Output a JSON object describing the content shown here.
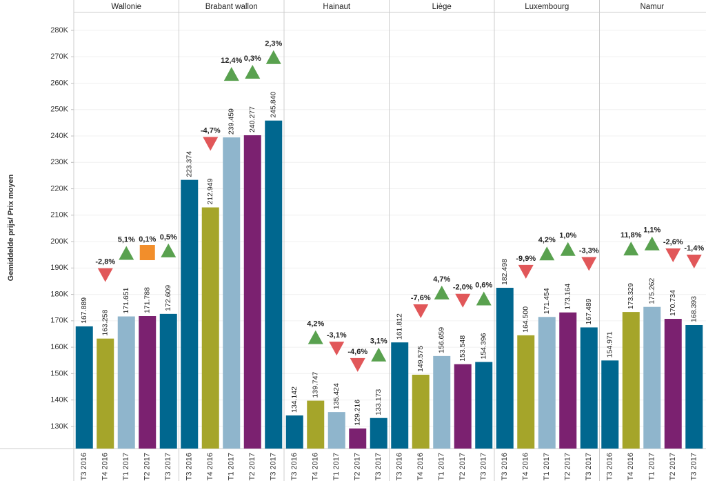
{
  "chart_data": {
    "type": "bar",
    "y_label": "Gemiddelde prijs/ Prix moyen",
    "categories": [
      "Wallonie",
      "Brabant wallon",
      "Hainaut",
      "Liège",
      "Luxembourg",
      "Namur"
    ],
    "series": [
      {
        "name": "T3 2016",
        "color": "#00678f",
        "values": [
          167889,
          223374,
          134142,
          161812,
          182498,
          154971
        ],
        "value_labels": [
          "167.889",
          "223.374",
          "134.142",
          "161.812",
          "182.498",
          "154.971"
        ]
      },
      {
        "name": "T4 2016",
        "color": "#a5a52a",
        "values": [
          163258,
          212949,
          139747,
          149575,
          164500,
          173329
        ],
        "value_labels": [
          "163.258",
          "212.949",
          "139.747",
          "149.575",
          "164.500",
          "173.329"
        ],
        "changes": [
          -2.8,
          -4.7,
          4.2,
          -7.6,
          -9.9,
          11.8
        ],
        "change_labels": [
          "-2,8%",
          "-4,7%",
          "4,2%",
          "-7,6%",
          "-9,9%",
          "11,8%"
        ]
      },
      {
        "name": "T1 2017",
        "color": "#8fb5cc",
        "values": [
          171651,
          239459,
          135424,
          156659,
          171454,
          175262
        ],
        "value_labels": [
          "171.651",
          "239.459",
          "135.424",
          "156.659",
          "171.454",
          "175.262"
        ],
        "changes": [
          5.1,
          12.4,
          -3.1,
          4.7,
          4.2,
          1.1
        ],
        "change_labels": [
          "5,1%",
          "12,4%",
          "-3,1%",
          "4,7%",
          "4,2%",
          "1,1%"
        ]
      },
      {
        "name": "T2 2017",
        "color": "#7b2170",
        "values": [
          171788,
          240277,
          129216,
          153548,
          173164,
          170734
        ],
        "value_labels": [
          "171.788",
          "240.277",
          "129.216",
          "153.548",
          "173.164",
          "170.734"
        ],
        "changes": [
          0.1,
          0.3,
          -4.6,
          -2.0,
          1.0,
          -2.6
        ],
        "change_labels": [
          "0,1%",
          "0,3%",
          "-4,6%",
          "-2,0%",
          "1,0%",
          "-2,6%"
        ]
      },
      {
        "name": "T3 2017",
        "color": "#00678f",
        "values": [
          172609,
          245840,
          133173,
          154396,
          167489,
          168393
        ],
        "value_labels": [
          "172.609",
          "245.840",
          "133.173",
          "154.396",
          "167.489",
          "168.393"
        ],
        "changes": [
          0.5,
          2.3,
          3.1,
          0.6,
          -3.3,
          -1.4
        ],
        "change_labels": [
          "0,5%",
          "2,3%",
          "3,1%",
          "0,6%",
          "-3,3%",
          "-1,4%"
        ]
      }
    ],
    "change_colors": {
      "up": "#59a14f",
      "down": "#e15759",
      "flat": "#f28e2b"
    },
    "ylim": [
      121600,
      286800
    ],
    "yticks": [
      {
        "value": 130000,
        "label": "130K"
      },
      {
        "value": 140000,
        "label": "140K"
      },
      {
        "value": 150000,
        "label": "150K"
      },
      {
        "value": 160000,
        "label": "160K"
      },
      {
        "value": 170000,
        "label": "170K"
      },
      {
        "value": 180000,
        "label": "180K"
      },
      {
        "value": 190000,
        "label": "190K"
      },
      {
        "value": 200000,
        "label": "200K"
      },
      {
        "value": 210000,
        "label": "210K"
      },
      {
        "value": 220000,
        "label": "220K"
      },
      {
        "value": 230000,
        "label": "230K"
      },
      {
        "value": 240000,
        "label": "240K"
      },
      {
        "value": 250000,
        "label": "250K"
      },
      {
        "value": 260000,
        "label": "260K"
      },
      {
        "value": 270000,
        "label": "270K"
      },
      {
        "value": 280000,
        "label": "280K"
      }
    ],
    "grid": true
  }
}
